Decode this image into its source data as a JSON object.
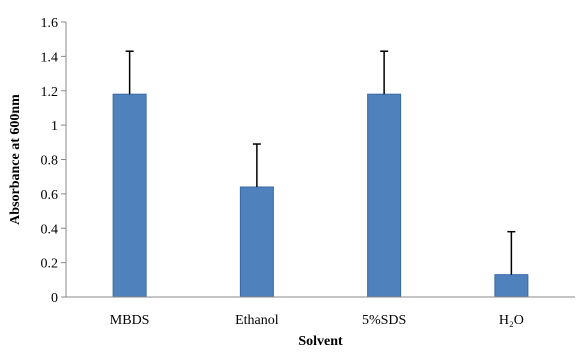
{
  "chart_data": {
    "type": "bar",
    "title": "",
    "xlabel": "Solvent",
    "ylabel": "Absorbance at 600nm",
    "categories": [
      "MBDS",
      "Ethanol",
      "5%SDS",
      "H₂O"
    ],
    "values": [
      1.18,
      0.64,
      1.18,
      0.13
    ],
    "error_plus": [
      0.25,
      0.25,
      0.25,
      0.25
    ],
    "ylim": [
      0,
      1.6
    ],
    "yticks": [
      "0",
      "0.2",
      "0.4",
      "0.6",
      "0.8",
      "1",
      "1.2",
      "1.4",
      "1.6"
    ],
    "grid": false,
    "legend": "none",
    "colors": {
      "bar": "#4f81bd",
      "bar_edge": "#3a6aa5",
      "error_bar": "#000000",
      "axis": "#888888"
    }
  }
}
